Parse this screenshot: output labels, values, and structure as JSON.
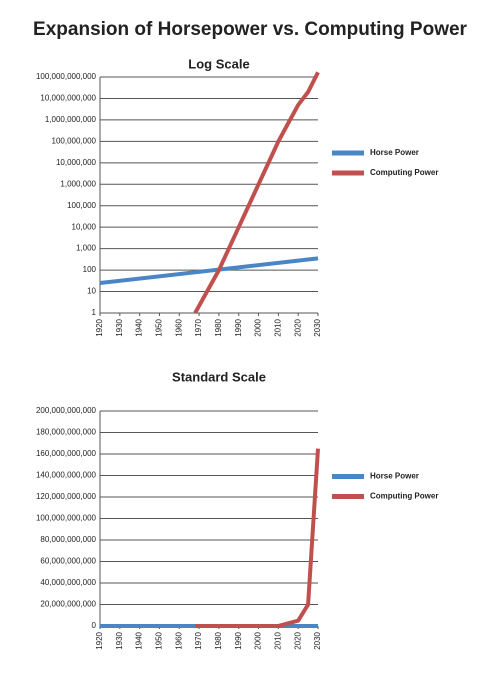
{
  "title": "Expansion of Horsepower vs. Computing Power",
  "chart_data": [
    {
      "type": "line",
      "title": "Log Scale",
      "log_scale": true,
      "grid": true,
      "legend": "right",
      "xlim": [
        1920,
        2030
      ],
      "xticks": [
        1920,
        1930,
        1940,
        1950,
        1960,
        1970,
        1980,
        1990,
        2000,
        2010,
        2020,
        2030
      ],
      "ylim": [
        1,
        100000000000
      ],
      "yticks": [
        1,
        10,
        100,
        {
          "value": 1000,
          "label": "1,000"
        },
        {
          "value": 10000,
          "label": "10,000"
        },
        {
          "value": 100000,
          "label": "100,000"
        },
        {
          "value": 1000000,
          "label": "1,000,000"
        },
        {
          "value": 10000000,
          "label": "10,000,000"
        },
        {
          "value": 100000000,
          "label": "100,000,000"
        },
        {
          "value": 1000000000,
          "label": "1,000,000,000"
        },
        {
          "value": 10000000000,
          "label": "10,000,000,000"
        },
        {
          "value": 100000000000,
          "label": "100,000,000,000"
        }
      ],
      "series": [
        {
          "name": "Horse Power",
          "color": "#4a86c5",
          "x": [
            1920,
            2030
          ],
          "values": [
            25,
            350
          ]
        },
        {
          "name": "Computing Power",
          "color": "#c0504d",
          "x": [
            1968,
            1980,
            1990,
            2000,
            2010,
            2020,
            2025,
            2030
          ],
          "values": [
            1,
            100,
            10000,
            1000000,
            100000000,
            5000000000,
            20000000000,
            165000000000
          ]
        }
      ]
    },
    {
      "type": "line",
      "title": "Standard Scale",
      "log_scale": false,
      "grid": true,
      "legend": "right",
      "xlim": [
        1920,
        2030
      ],
      "xticks": [
        1920,
        1930,
        1940,
        1950,
        1960,
        1970,
        1980,
        1990,
        2000,
        2010,
        2020,
        2030
      ],
      "ylim": [
        0,
        200000000000
      ],
      "yticks": [
        0,
        {
          "value": 20000000000,
          "label": "20,000,000,000"
        },
        {
          "value": 40000000000,
          "label": "40,000,000,000"
        },
        {
          "value": 60000000000,
          "label": "60,000,000,000"
        },
        {
          "value": 80000000000,
          "label": "80,000,000,000"
        },
        {
          "value": 100000000000,
          "label": "100,000,000,000"
        },
        {
          "value": 120000000000,
          "label": "120,000,000,000"
        },
        {
          "value": 140000000000,
          "label": "140,000,000,000"
        },
        {
          "value": 160000000000,
          "label": "160,000,000,000"
        },
        {
          "value": 180000000000,
          "label": "180,000,000,000"
        },
        {
          "value": 200000000000,
          "label": "200,000,000,000"
        }
      ],
      "series": [
        {
          "name": "Horse Power",
          "color": "#4a86c5",
          "x": [
            1920,
            2030
          ],
          "values": [
            25,
            350
          ]
        },
        {
          "name": "Computing Power",
          "color": "#c0504d",
          "x": [
            1968,
            1980,
            1990,
            2000,
            2010,
            2020,
            2025,
            2030
          ],
          "values": [
            1,
            100,
            10000,
            1000000,
            100000000,
            5000000000,
            20000000000,
            165000000000
          ]
        }
      ]
    }
  ]
}
